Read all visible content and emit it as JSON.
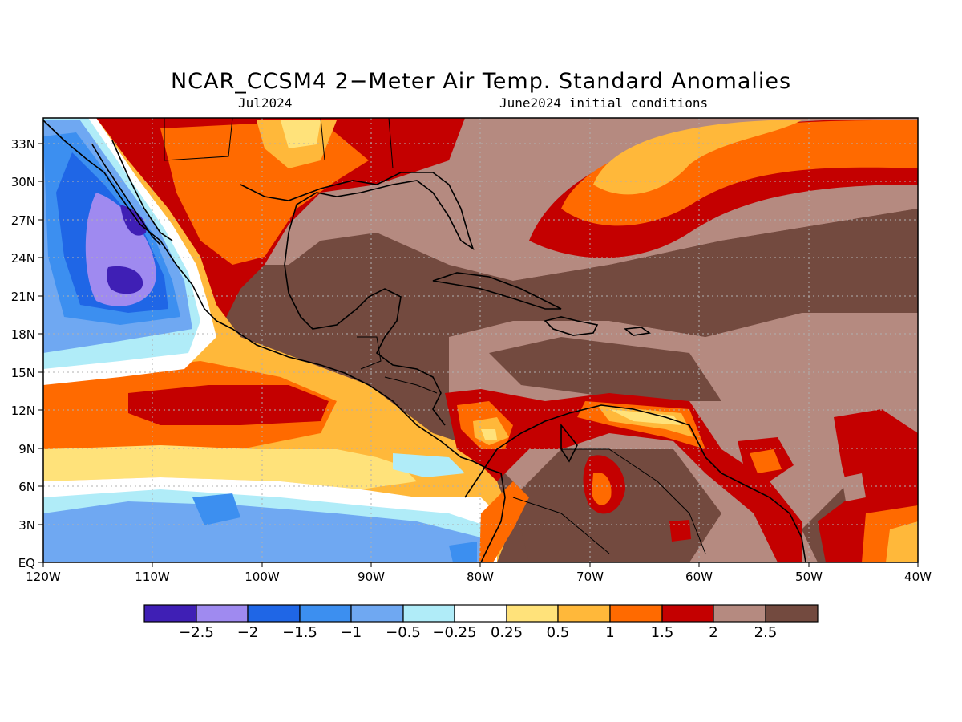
{
  "figure": {
    "title": "NCAR_CCSM4 2−Meter Air Temp. Standard Anomalies",
    "valid_month": "Jul2024",
    "initial_conditions": "June2024 initial conditions"
  },
  "axes": {
    "lon_labels": [
      "120W",
      "110W",
      "100W",
      "90W",
      "80W",
      "70W",
      "60W",
      "50W",
      "40W"
    ],
    "lat_labels": [
      "33N",
      "30N",
      "27N",
      "24N",
      "21N",
      "18N",
      "15N",
      "12N",
      "9N",
      "6N",
      "3N",
      "EQ"
    ]
  },
  "colorbar": {
    "labels": [
      "−2.5",
      "−2",
      "−1.5",
      "−1",
      "−0.5",
      "−0.25",
      "0.25",
      "0.5",
      "1",
      "1.5",
      "2",
      "2.5"
    ],
    "colors": [
      "#3f1fb5",
      "#9f8af0",
      "#1f66e6",
      "#3c8ff0",
      "#6fa8f2",
      "#b0ecf8",
      "#ffffff",
      "#ffe27a",
      "#ffb83a",
      "#ff6a00",
      "#c40000",
      "#b58a80",
      "#734a3f"
    ]
  },
  "chart_data": {
    "type": "heatmap",
    "title": "NCAR_CCSM4 2−Meter Air Temp. Standard Anomalies",
    "subtitle_left": "Jul2024",
    "subtitle_right": "June2024 initial conditions",
    "x_range": [
      "120W",
      "40W"
    ],
    "y_range": [
      "EQ",
      "35N"
    ],
    "levels": [
      -2.5,
      -2,
      -1.5,
      -1,
      -0.5,
      -0.25,
      0.25,
      0.5,
      1,
      1.5,
      2,
      2.5
    ],
    "grid": true
  }
}
